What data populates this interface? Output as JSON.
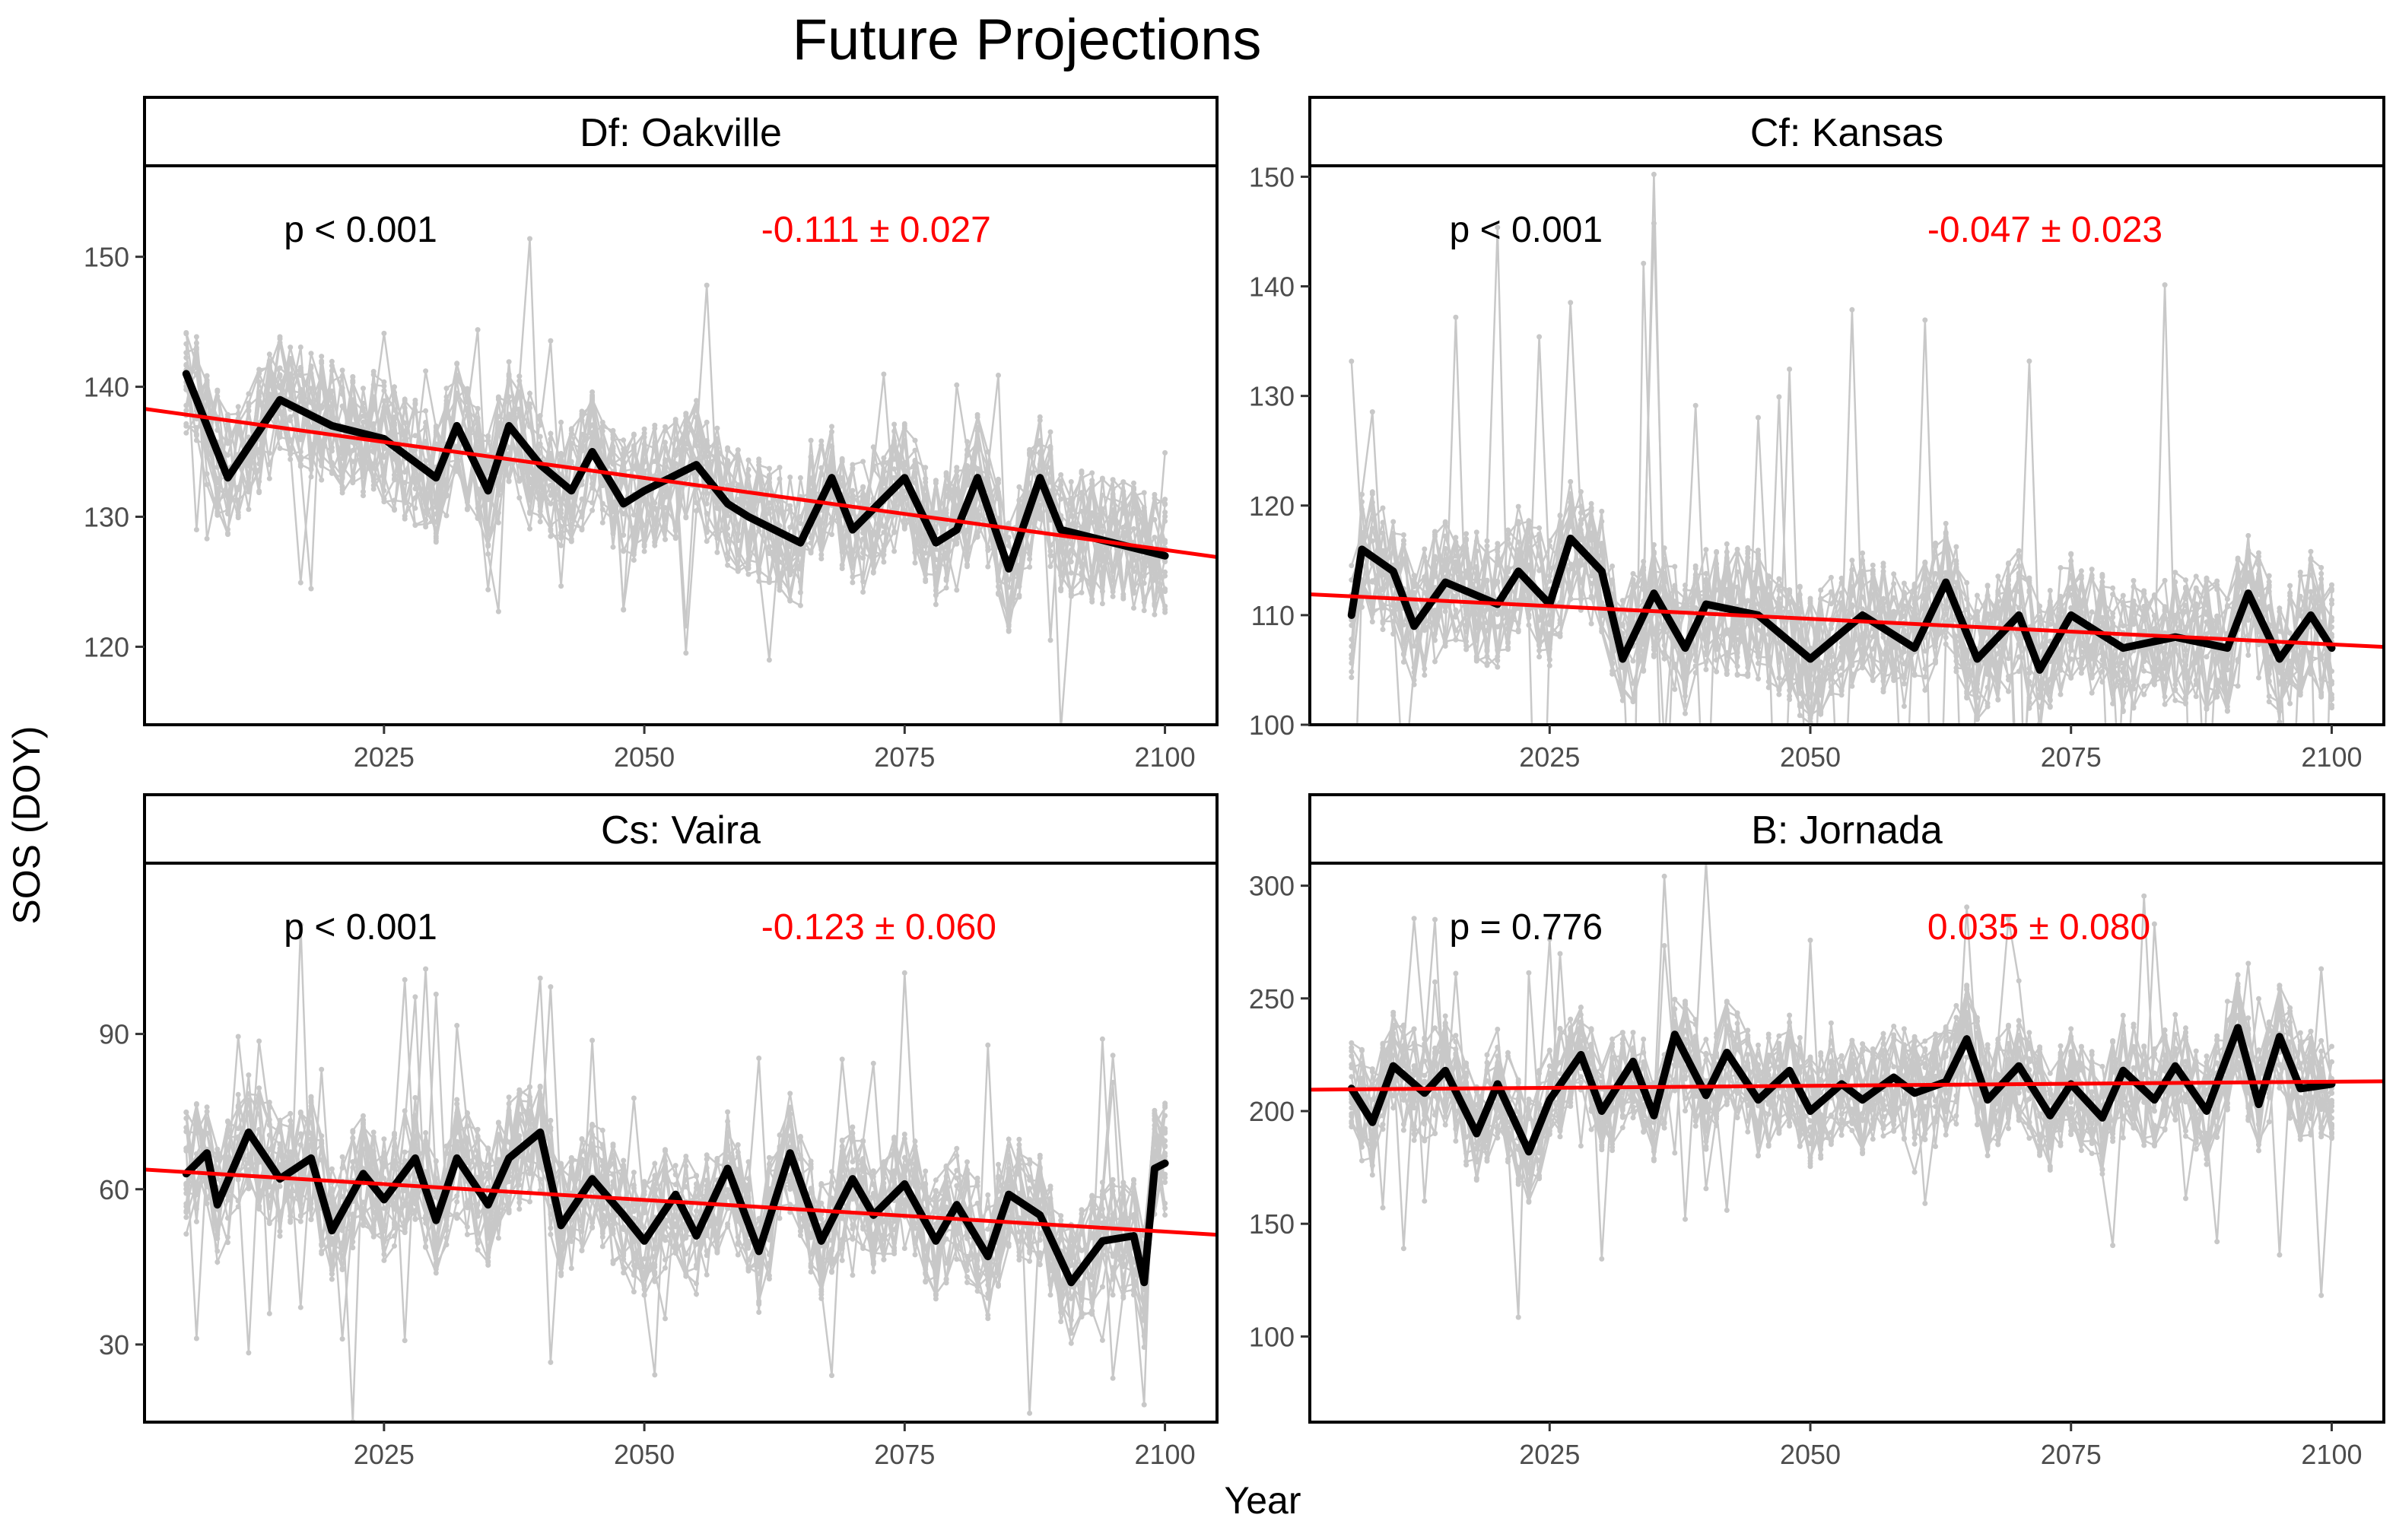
{
  "figure": {
    "title": "Future Projections",
    "xlabel": "Year",
    "ylabel": "SOS (DOY)"
  },
  "colors": {
    "ensemble": "#c8c8c8",
    "mean": "#000000",
    "trend": "#ff0000",
    "p_text": "#000000",
    "slope_text": "#ff0000",
    "strip_fill": "#ffffff"
  },
  "chart_data": [
    {
      "type": "line",
      "panel": "Df: Oakville",
      "p_label": "p < 0.001",
      "slope_label": "-0.111 ± 0.027",
      "xlim": [
        2002,
        2105
      ],
      "ylim": [
        114,
        157
      ],
      "xticks": [
        2025,
        2050,
        2075,
        2100
      ],
      "yticks": [
        120,
        130,
        140,
        150
      ],
      "x_start": 2006,
      "x_end": 2100,
      "trend": {
        "x": [
          2002,
          2105
        ],
        "y": [
          138.3,
          126.9
        ]
      },
      "ensemble_mean": [
        {
          "x": 2006,
          "y": 141
        },
        {
          "x": 2010,
          "y": 133
        },
        {
          "x": 2015,
          "y": 139
        },
        {
          "x": 2020,
          "y": 137
        },
        {
          "x": 2025,
          "y": 136
        },
        {
          "x": 2030,
          "y": 133
        },
        {
          "x": 2032,
          "y": 137
        },
        {
          "x": 2035,
          "y": 132
        },
        {
          "x": 2037,
          "y": 137
        },
        {
          "x": 2040,
          "y": 134
        },
        {
          "x": 2043,
          "y": 132
        },
        {
          "x": 2045,
          "y": 135
        },
        {
          "x": 2048,
          "y": 131
        },
        {
          "x": 2050,
          "y": 132
        },
        {
          "x": 2055,
          "y": 134
        },
        {
          "x": 2058,
          "y": 131
        },
        {
          "x": 2060,
          "y": 130
        },
        {
          "x": 2065,
          "y": 128
        },
        {
          "x": 2068,
          "y": 133
        },
        {
          "x": 2070,
          "y": 129
        },
        {
          "x": 2075,
          "y": 133
        },
        {
          "x": 2078,
          "y": 128
        },
        {
          "x": 2080,
          "y": 129
        },
        {
          "x": 2082,
          "y": 133
        },
        {
          "x": 2085,
          "y": 126
        },
        {
          "x": 2088,
          "y": 133
        },
        {
          "x": 2090,
          "y": 129
        },
        {
          "x": 2095,
          "y": 128
        },
        {
          "x": 2100,
          "y": 127
        }
      ],
      "ensemble_spread": 5,
      "ensemble_outlier": 12,
      "ensemble_members": 20
    },
    {
      "type": "line",
      "panel": "Cf: Kansas",
      "p_label": "p < 0.001",
      "slope_label": "-0.047 ± 0.023",
      "xlim": [
        2002,
        2105
      ],
      "ylim": [
        100,
        151
      ],
      "xticks": [
        2025,
        2050,
        2075,
        2100
      ],
      "yticks": [
        100,
        110,
        120,
        130,
        140,
        150
      ],
      "x_start": 2006,
      "x_end": 2100,
      "trend": {
        "x": [
          2002,
          2105
        ],
        "y": [
          111.9,
          107.1
        ]
      },
      "ensemble_mean": [
        {
          "x": 2006,
          "y": 110
        },
        {
          "x": 2007,
          "y": 116
        },
        {
          "x": 2010,
          "y": 114
        },
        {
          "x": 2012,
          "y": 109
        },
        {
          "x": 2015,
          "y": 113
        },
        {
          "x": 2020,
          "y": 111
        },
        {
          "x": 2022,
          "y": 114
        },
        {
          "x": 2025,
          "y": 111
        },
        {
          "x": 2027,
          "y": 117
        },
        {
          "x": 2030,
          "y": 114
        },
        {
          "x": 2032,
          "y": 106
        },
        {
          "x": 2035,
          "y": 112
        },
        {
          "x": 2038,
          "y": 107
        },
        {
          "x": 2040,
          "y": 111
        },
        {
          "x": 2045,
          "y": 110
        },
        {
          "x": 2050,
          "y": 106
        },
        {
          "x": 2055,
          "y": 110
        },
        {
          "x": 2060,
          "y": 107
        },
        {
          "x": 2063,
          "y": 113
        },
        {
          "x": 2066,
          "y": 106
        },
        {
          "x": 2070,
          "y": 110
        },
        {
          "x": 2072,
          "y": 105
        },
        {
          "x": 2075,
          "y": 110
        },
        {
          "x": 2080,
          "y": 107
        },
        {
          "x": 2085,
          "y": 108
        },
        {
          "x": 2090,
          "y": 107
        },
        {
          "x": 2092,
          "y": 112
        },
        {
          "x": 2095,
          "y": 106
        },
        {
          "x": 2098,
          "y": 110
        },
        {
          "x": 2100,
          "y": 107
        }
      ],
      "ensemble_spread": 6,
      "ensemble_outlier": 34,
      "ensemble_members": 20
    },
    {
      "type": "line",
      "panel": "Cs: Vaira",
      "p_label": "p < 0.001",
      "slope_label": "-0.123 ± 0.060",
      "xlim": [
        2002,
        2105
      ],
      "ylim": [
        15,
        123
      ],
      "xticks": [
        2025,
        2050,
        2075,
        2100
      ],
      "yticks": [
        30,
        60,
        90
      ],
      "x_start": 2006,
      "x_end": 2100,
      "trend": {
        "x": [
          2002,
          2105
        ],
        "y": [
          63.8,
          51.2
        ]
      },
      "ensemble_mean": [
        {
          "x": 2006,
          "y": 63
        },
        {
          "x": 2008,
          "y": 67
        },
        {
          "x": 2009,
          "y": 57
        },
        {
          "x": 2012,
          "y": 71
        },
        {
          "x": 2015,
          "y": 62
        },
        {
          "x": 2018,
          "y": 66
        },
        {
          "x": 2020,
          "y": 52
        },
        {
          "x": 2023,
          "y": 63
        },
        {
          "x": 2025,
          "y": 58
        },
        {
          "x": 2028,
          "y": 66
        },
        {
          "x": 2030,
          "y": 54
        },
        {
          "x": 2032,
          "y": 66
        },
        {
          "x": 2035,
          "y": 57
        },
        {
          "x": 2037,
          "y": 66
        },
        {
          "x": 2040,
          "y": 71
        },
        {
          "x": 2042,
          "y": 53
        },
        {
          "x": 2045,
          "y": 62
        },
        {
          "x": 2048,
          "y": 55
        },
        {
          "x": 2050,
          "y": 50
        },
        {
          "x": 2053,
          "y": 59
        },
        {
          "x": 2055,
          "y": 51
        },
        {
          "x": 2058,
          "y": 64
        },
        {
          "x": 2061,
          "y": 48
        },
        {
          "x": 2064,
          "y": 67
        },
        {
          "x": 2067,
          "y": 50
        },
        {
          "x": 2070,
          "y": 62
        },
        {
          "x": 2072,
          "y": 55
        },
        {
          "x": 2075,
          "y": 61
        },
        {
          "x": 2078,
          "y": 50
        },
        {
          "x": 2080,
          "y": 57
        },
        {
          "x": 2083,
          "y": 47
        },
        {
          "x": 2085,
          "y": 59
        },
        {
          "x": 2088,
          "y": 55
        },
        {
          "x": 2091,
          "y": 42
        },
        {
          "x": 2094,
          "y": 50
        },
        {
          "x": 2097,
          "y": 51
        },
        {
          "x": 2098,
          "y": 42
        },
        {
          "x": 2099,
          "y": 64
        },
        {
          "x": 2100,
          "y": 65
        }
      ],
      "ensemble_spread": 12,
      "ensemble_outlier": 40,
      "ensemble_members": 20
    },
    {
      "type": "line",
      "panel": "B: Jornada",
      "p_label": "p = 0.776",
      "slope_label": "0.035 ± 0.080",
      "xlim": [
        2002,
        2105
      ],
      "ylim": [
        62,
        310
      ],
      "xticks": [
        2025,
        2050,
        2075,
        2100
      ],
      "yticks": [
        100,
        150,
        200,
        250,
        300
      ],
      "x_start": 2006,
      "x_end": 2100,
      "trend": {
        "x": [
          2002,
          2105
        ],
        "y": [
          209.5,
          213.2
        ]
      },
      "ensemble_mean": [
        {
          "x": 2006,
          "y": 210
        },
        {
          "x": 2008,
          "y": 195
        },
        {
          "x": 2010,
          "y": 220
        },
        {
          "x": 2013,
          "y": 208
        },
        {
          "x": 2015,
          "y": 218
        },
        {
          "x": 2018,
          "y": 190
        },
        {
          "x": 2020,
          "y": 212
        },
        {
          "x": 2023,
          "y": 182
        },
        {
          "x": 2025,
          "y": 205
        },
        {
          "x": 2028,
          "y": 225
        },
        {
          "x": 2030,
          "y": 200
        },
        {
          "x": 2033,
          "y": 222
        },
        {
          "x": 2035,
          "y": 198
        },
        {
          "x": 2037,
          "y": 234
        },
        {
          "x": 2040,
          "y": 207
        },
        {
          "x": 2042,
          "y": 226
        },
        {
          "x": 2045,
          "y": 205
        },
        {
          "x": 2048,
          "y": 218
        },
        {
          "x": 2050,
          "y": 200
        },
        {
          "x": 2053,
          "y": 212
        },
        {
          "x": 2055,
          "y": 205
        },
        {
          "x": 2058,
          "y": 215
        },
        {
          "x": 2060,
          "y": 208
        },
        {
          "x": 2063,
          "y": 213
        },
        {
          "x": 2065,
          "y": 232
        },
        {
          "x": 2067,
          "y": 205
        },
        {
          "x": 2070,
          "y": 220
        },
        {
          "x": 2073,
          "y": 198
        },
        {
          "x": 2075,
          "y": 212
        },
        {
          "x": 2078,
          "y": 197
        },
        {
          "x": 2080,
          "y": 218
        },
        {
          "x": 2083,
          "y": 205
        },
        {
          "x": 2085,
          "y": 220
        },
        {
          "x": 2088,
          "y": 200
        },
        {
          "x": 2091,
          "y": 237
        },
        {
          "x": 2093,
          "y": 203
        },
        {
          "x": 2095,
          "y": 233
        },
        {
          "x": 2097,
          "y": 210
        },
        {
          "x": 2100,
          "y": 212
        }
      ],
      "ensemble_spread": 25,
      "ensemble_outlier": 90,
      "ensemble_members": 20
    }
  ]
}
